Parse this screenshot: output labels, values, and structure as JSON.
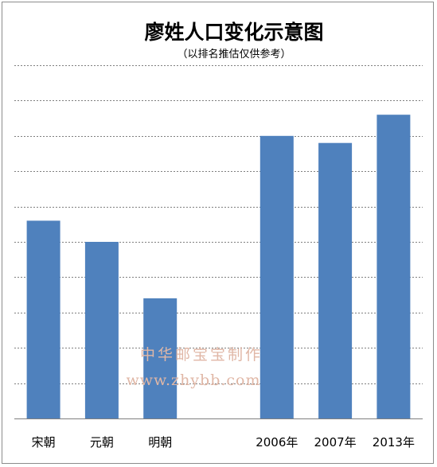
{
  "chart_data": {
    "type": "bar",
    "title": "廖姓人口变化示意图",
    "subtitle": "（以排名推估仅供参考）",
    "categories": [
      "宋朝",
      "元朝",
      "明朝",
      "",
      "2006年",
      "2007年",
      "2013年"
    ],
    "values": [
      5.6,
      5.0,
      3.4,
      null,
      8.0,
      7.8,
      8.6
    ],
    "ylim": [
      0,
      10
    ],
    "grid": true,
    "bar_color": "#4f81bd",
    "grid_color": "#7f7f7f",
    "xlabel": "",
    "ylabel": ""
  },
  "watermark": {
    "line1": "中华邮宝宝制作",
    "line2": "www.zhybb.com"
  }
}
